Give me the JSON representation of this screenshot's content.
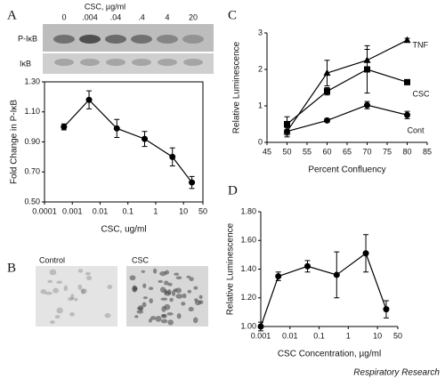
{
  "panel_labels": [
    "A",
    "B",
    "C",
    "D"
  ],
  "blot": {
    "header": "CSC, µg/ml",
    "lanes": [
      "0",
      ".004",
      ".04",
      ".4",
      "4",
      "20"
    ],
    "rows": [
      "P-IκB",
      "IκB"
    ]
  },
  "micrographs": [
    "Control",
    "CSC"
  ],
  "source": "Respiratory Research",
  "chart_data": [
    {
      "type": "line",
      "xlabel": "CSC, ug/ml",
      "ylabel": "Fold Change in P-IκB",
      "xscale": "log",
      "color": "#000000",
      "marker": "circle",
      "x": [
        0.0005,
        0.004,
        0.04,
        0.4,
        4,
        20
      ],
      "values": [
        1.0,
        1.18,
        0.99,
        0.92,
        0.8,
        0.63
      ],
      "errors": [
        0.02,
        0.06,
        0.06,
        0.05,
        0.06,
        0.04
      ],
      "xlim": [
        0.0001,
        50
      ],
      "xticks": [
        0.0001,
        0.001,
        0.01,
        0.1,
        1,
        10,
        50
      ],
      "ylim": [
        0.5,
        1.3
      ],
      "yticks": [
        {
          "value": 0.5,
          "label": "0.50"
        },
        {
          "value": 0.7,
          "label": "0.70"
        },
        {
          "value": 0.9,
          "label": "0.90"
        },
        {
          "value": 1.1,
          "label": "1.10"
        },
        {
          "value": 1.3,
          "label": "1.30"
        }
      ]
    },
    {
      "type": "line",
      "xlabel": "Percent Confluency",
      "ylabel": "Relative Luminescence",
      "color": "#000000",
      "x": [
        50,
        60,
        70,
        80
      ],
      "series": [
        {
          "name": "TNF",
          "marker": "triangle",
          "color": "#000000",
          "values": [
            0.3,
            1.9,
            2.25,
            2.8
          ],
          "errors": [
            0.15,
            0.35,
            0.3,
            0.05
          ]
        },
        {
          "name": "CSC",
          "marker": "square",
          "color": "#000000",
          "values": [
            0.5,
            1.4,
            2.0,
            1.65
          ],
          "errors": [
            0.2,
            0.1,
            0.65,
            0.05
          ]
        },
        {
          "name": "Cont",
          "marker": "circle",
          "color": "#000000",
          "values": [
            0.3,
            0.6,
            1.02,
            0.75
          ],
          "errors": [
            0.1,
            0.05,
            0.1,
            0.1
          ]
        }
      ],
      "xlim": [
        45,
        85
      ],
      "xticks": [
        45,
        50,
        55,
        60,
        65,
        70,
        75,
        80,
        85
      ],
      "ylim": [
        0,
        3
      ],
      "yticks": [
        0,
        1,
        2,
        3
      ]
    },
    {
      "type": "line",
      "xlabel": "CSC Concentration, µg/ml",
      "ylabel": "Relative Luminescence",
      "xscale": "log",
      "color": "#000000",
      "marker": "circle",
      "x": [
        0.001,
        0.004,
        0.04,
        0.4,
        4,
        20
      ],
      "values": [
        1.0,
        1.35,
        1.42,
        1.36,
        1.51,
        1.12
      ],
      "errors": [
        0.03,
        0.03,
        0.04,
        0.16,
        0.13,
        0.06
      ],
      "xlim": [
        0.001,
        50
      ],
      "xticks": [
        0.001,
        0.01,
        0.1,
        1,
        10,
        50
      ],
      "ylim": [
        1.0,
        1.8
      ],
      "yticks": [
        {
          "value": 1.0,
          "label": "1.00"
        },
        {
          "value": 1.2,
          "label": "1.20"
        },
        {
          "value": 1.4,
          "label": "1.40"
        },
        {
          "value": 1.6,
          "label": "1.60"
        },
        {
          "value": 1.8,
          "label": "1.80"
        }
      ]
    }
  ]
}
